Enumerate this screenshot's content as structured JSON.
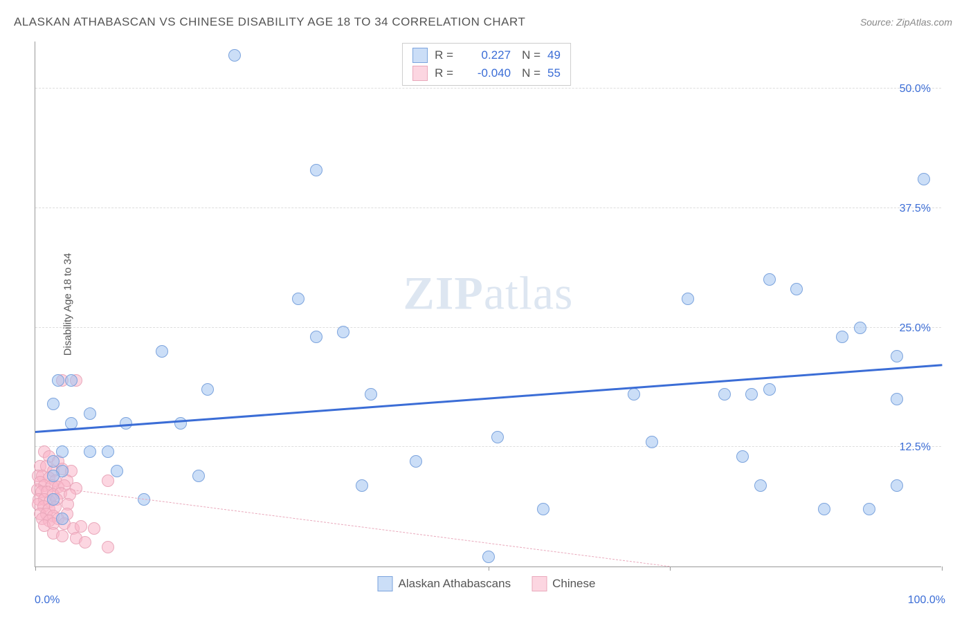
{
  "title": "ALASKAN ATHABASCAN VS CHINESE DISABILITY AGE 18 TO 34 CORRELATION CHART",
  "source_label": "Source: ZipAtlas.com",
  "watermark": {
    "part1": "ZIP",
    "part2": "atlas"
  },
  "chart": {
    "type": "scatter",
    "ylabel": "Disability Age 18 to 34",
    "xlim": [
      0,
      100
    ],
    "ylim": [
      0,
      55
    ],
    "x_tick_positions": [
      0,
      50,
      70,
      100
    ],
    "y_gridlines": [
      12.5,
      25.0,
      37.5,
      50.0
    ],
    "y_tick_labels": [
      "12.5%",
      "25.0%",
      "37.5%",
      "50.0%"
    ],
    "x_min_label": "0.0%",
    "x_max_label": "100.0%",
    "colors": {
      "series_a_fill": "rgba(160,195,240,0.55)",
      "series_a_stroke": "#7ba3dd",
      "series_b_fill": "rgba(250,180,200,0.55)",
      "series_b_stroke": "#e9a8bb",
      "trend_a": "#3b6dd6",
      "trend_b": "#e9a8bb",
      "tick_label": "#3b6dd6",
      "axis_label": "#555555"
    },
    "marker_radius": 9,
    "legend_top": [
      {
        "r": "0.227",
        "n": "49",
        "swatch_fill": "rgba(160,195,240,0.55)",
        "swatch_stroke": "#7ba3dd"
      },
      {
        "r": "-0.040",
        "n": "55",
        "swatch_fill": "rgba(250,180,200,0.55)",
        "swatch_stroke": "#e9a8bb"
      }
    ],
    "legend_bottom": [
      {
        "label": "Alaskan Athabascans",
        "swatch_fill": "rgba(160,195,240,0.55)",
        "swatch_stroke": "#7ba3dd"
      },
      {
        "label": "Chinese",
        "swatch_fill": "rgba(250,180,200,0.55)",
        "swatch_stroke": "#e9a8bb"
      }
    ],
    "series_a": {
      "name": "Alaskan Athabascans",
      "trend": {
        "x1": 0,
        "y1": 14.0,
        "x2": 100,
        "y2": 21.0,
        "width": 3,
        "dashed": false
      },
      "points": [
        [
          22,
          53.5
        ],
        [
          31,
          41.5
        ],
        [
          98,
          40.5
        ],
        [
          81,
          30.0
        ],
        [
          84,
          29.0
        ],
        [
          72,
          28.0
        ],
        [
          29,
          28.0
        ],
        [
          91,
          25.0
        ],
        [
          34,
          24.5
        ],
        [
          31,
          24.0
        ],
        [
          89,
          24.0
        ],
        [
          14,
          22.5
        ],
        [
          95,
          22.0
        ],
        [
          2.5,
          19.5
        ],
        [
          4,
          19.5
        ],
        [
          19,
          18.5
        ],
        [
          37,
          18.0
        ],
        [
          66,
          18.0
        ],
        [
          76,
          18.0
        ],
        [
          79,
          18.0
        ],
        [
          81,
          18.5
        ],
        [
          2,
          17.0
        ],
        [
          95,
          17.5
        ],
        [
          6,
          16.0
        ],
        [
          4,
          15.0
        ],
        [
          10,
          15.0
        ],
        [
          16,
          15.0
        ],
        [
          51,
          13.5
        ],
        [
          68,
          13.0
        ],
        [
          3,
          12.0
        ],
        [
          6,
          12.0
        ],
        [
          8,
          12.0
        ],
        [
          2,
          11.0
        ],
        [
          42,
          11.0
        ],
        [
          78,
          11.5
        ],
        [
          3,
          10.0
        ],
        [
          9,
          10.0
        ],
        [
          2,
          9.5
        ],
        [
          18,
          9.5
        ],
        [
          36,
          8.5
        ],
        [
          80,
          8.5
        ],
        [
          95,
          8.5
        ],
        [
          2,
          7.0
        ],
        [
          12,
          7.0
        ],
        [
          56,
          6.0
        ],
        [
          87,
          6.0
        ],
        [
          92,
          6.0
        ],
        [
          3,
          5.0
        ],
        [
          50,
          1.0
        ]
      ]
    },
    "series_b": {
      "name": "Chinese",
      "trend": {
        "x1": 0,
        "y1": 8.5,
        "x2": 70,
        "y2": 0.0,
        "width": 1,
        "dashed": true
      },
      "points": [
        [
          3,
          19.5
        ],
        [
          4.5,
          19.5
        ],
        [
          1,
          12.0
        ],
        [
          1.5,
          11.5
        ],
        [
          2.5,
          11.0
        ],
        [
          0.5,
          10.5
        ],
        [
          1.2,
          10.5
        ],
        [
          2,
          10.0
        ],
        [
          3,
          10.2
        ],
        [
          4,
          10.0
        ],
        [
          0.3,
          9.5
        ],
        [
          0.8,
          9.5
        ],
        [
          1.5,
          9.3
        ],
        [
          2.2,
          9.0
        ],
        [
          3.5,
          9.0
        ],
        [
          8,
          9.0
        ],
        [
          0.5,
          8.8
        ],
        [
          1,
          8.5
        ],
        [
          1.8,
          8.5
        ],
        [
          2.5,
          8.3
        ],
        [
          3.2,
          8.5
        ],
        [
          4.5,
          8.2
        ],
        [
          0.2,
          8.0
        ],
        [
          0.7,
          7.8
        ],
        [
          1.3,
          7.8
        ],
        [
          2,
          7.5
        ],
        [
          2.8,
          7.7
        ],
        [
          3.8,
          7.5
        ],
        [
          0.4,
          7.0
        ],
        [
          1,
          7.0
        ],
        [
          1.6,
          6.8
        ],
        [
          2.4,
          7.0
        ],
        [
          3.6,
          6.5
        ],
        [
          0.3,
          6.5
        ],
        [
          0.9,
          6.3
        ],
        [
          1.5,
          6.0
        ],
        [
          2.2,
          6.2
        ],
        [
          0.5,
          5.5
        ],
        [
          1.2,
          5.5
        ],
        [
          2,
          5.3
        ],
        [
          3.5,
          5.5
        ],
        [
          0.8,
          5.0
        ],
        [
          1.5,
          4.8
        ],
        [
          2.5,
          5.0
        ],
        [
          1,
          4.3
        ],
        [
          2,
          4.5
        ],
        [
          3.2,
          4.5
        ],
        [
          4.2,
          4.0
        ],
        [
          5,
          4.2
        ],
        [
          6.5,
          4.0
        ],
        [
          2,
          3.5
        ],
        [
          3,
          3.2
        ],
        [
          4.5,
          3.0
        ],
        [
          5.5,
          2.5
        ],
        [
          8,
          2.0
        ]
      ]
    }
  }
}
